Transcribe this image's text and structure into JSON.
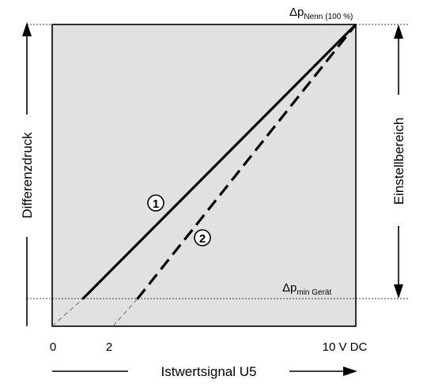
{
  "chart_data": {
    "type": "line",
    "xlabel": "Istwertsignal U5",
    "ylabel": "Differenzdruck",
    "right_axis_label": "Einstellbereich",
    "x_ticks": [
      "0",
      "2",
      "10 V DC"
    ],
    "x_range": [
      0,
      10
    ],
    "y_range": [
      0,
      100
    ],
    "grid": false,
    "reference_lines": [
      {
        "main": "Δp",
        "sub": "Nenn",
        "suffix": "(100 %)",
        "y": 100
      },
      {
        "main": "Δp",
        "sub": "min Gerät",
        "y": 9
      }
    ],
    "series": [
      {
        "name": "1",
        "style": "solid",
        "x": [
          1.0,
          10.0
        ],
        "y": [
          9,
          100
        ],
        "extension": {
          "x": [
            0.0,
            1.0
          ],
          "y": [
            -1,
            9
          ]
        }
      },
      {
        "name": "2",
        "style": "dashed",
        "x": [
          2.8,
          10.0
        ],
        "y": [
          9,
          100
        ],
        "extension": {
          "x": [
            2.0,
            2.8
          ],
          "y": [
            -1,
            9
          ]
        }
      }
    ],
    "colors": {
      "plot_background": "#e1e1e1",
      "line": "#000000"
    }
  }
}
